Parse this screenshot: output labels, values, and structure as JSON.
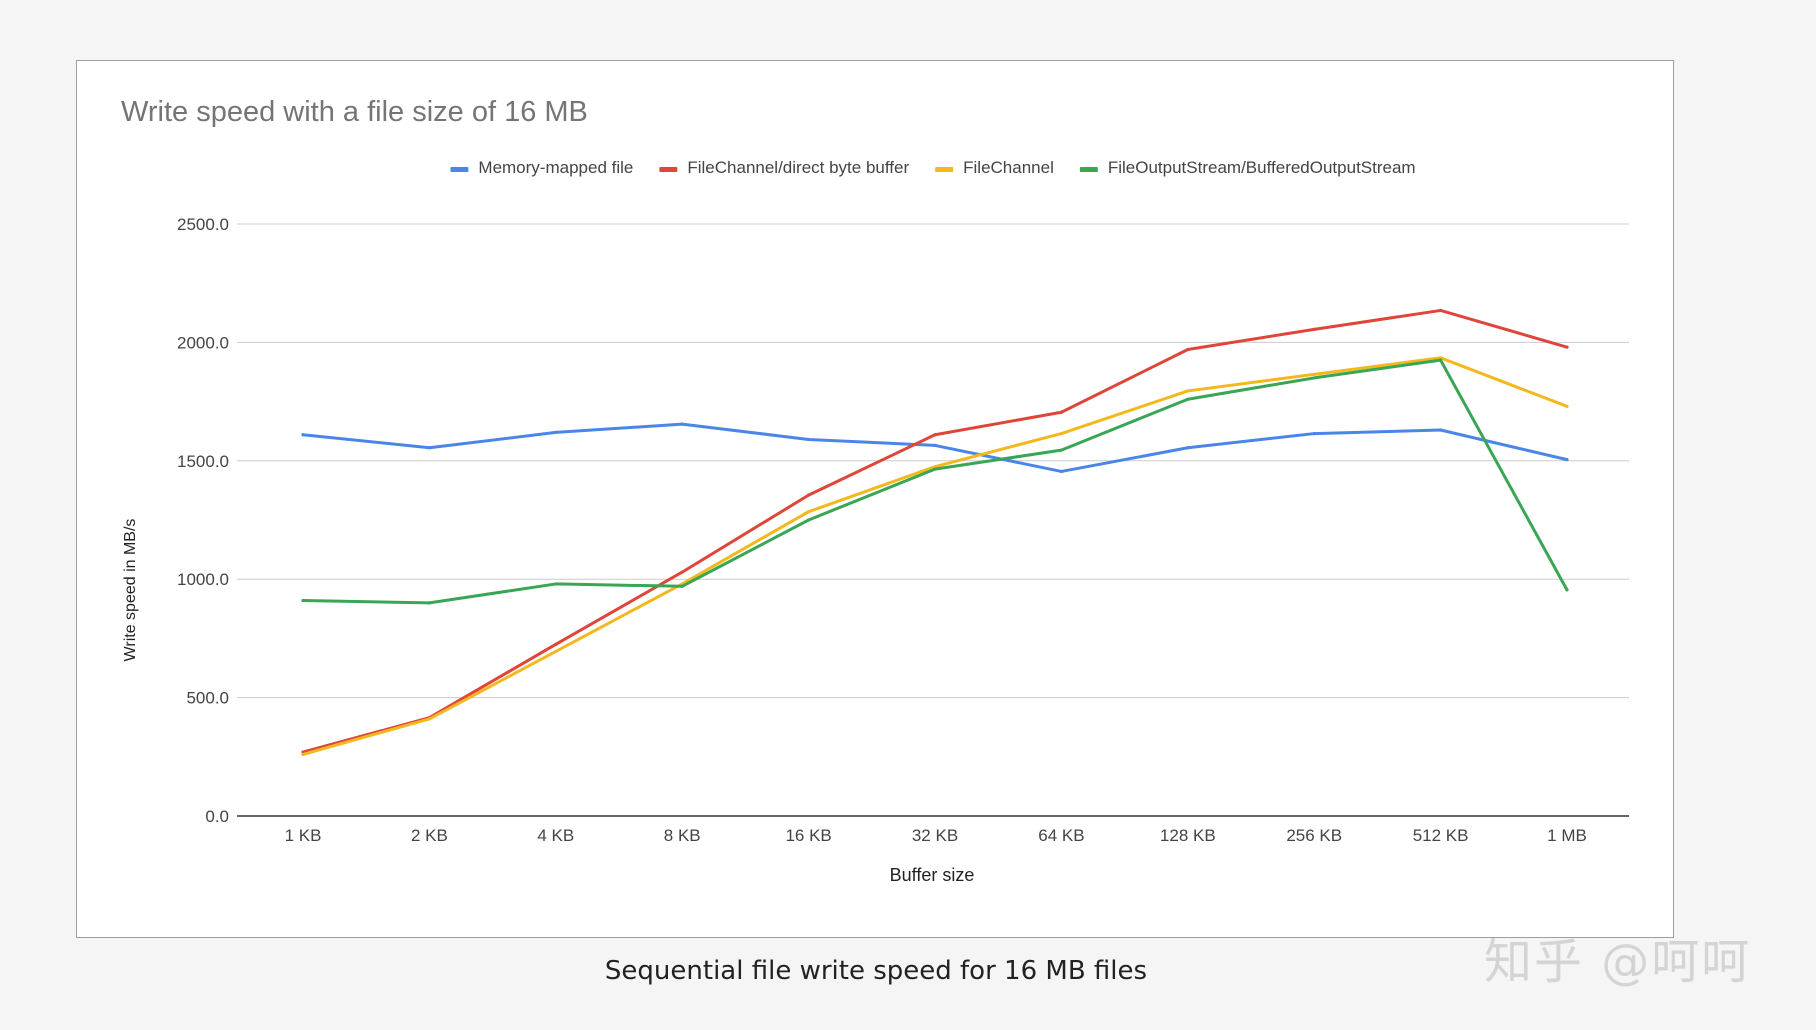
{
  "caption": "Sequential file write speed for 16 MB files",
  "watermark": "知乎 @呵呵",
  "chart_data": {
    "type": "line",
    "title": "Write speed with a file size of 16 MB",
    "xlabel": "Buffer size",
    "ylabel": "Write speed in MB/s",
    "ylim": [
      0,
      2500
    ],
    "yticks": [
      0,
      500,
      1000,
      1500,
      2000,
      2500
    ],
    "ytick_labels": [
      "0.0",
      "500.0",
      "1000.0",
      "1500.0",
      "2000.0",
      "2500.0"
    ],
    "grid": true,
    "legend_position": "top",
    "categories": [
      "1 KB",
      "2 KB",
      "4 KB",
      "8 KB",
      "16 KB",
      "32 KB",
      "64 KB",
      "128 KB",
      "256 KB",
      "512 KB",
      "1 MB"
    ],
    "series": [
      {
        "name": "Memory-mapped file",
        "color": "#4a86e8",
        "values": [
          1610,
          1555,
          1620,
          1655,
          1590,
          1565,
          1455,
          1555,
          1615,
          1630,
          1505
        ]
      },
      {
        "name": "FileChannel/direct byte buffer",
        "color": "#e0453a",
        "values": [
          270,
          415,
          725,
          1030,
          1355,
          1610,
          1705,
          1970,
          2055,
          2135,
          1980
        ]
      },
      {
        "name": "FileChannel",
        "color": "#f4b81f",
        "values": [
          260,
          410,
          695,
          980,
          1285,
          1475,
          1615,
          1795,
          1865,
          1935,
          1730
        ]
      },
      {
        "name": "FileOutputStream/BufferedOutputStream",
        "color": "#3aa655",
        "values": [
          910,
          900,
          980,
          970,
          1250,
          1465,
          1545,
          1760,
          1850,
          1925,
          955
        ]
      }
    ]
  }
}
